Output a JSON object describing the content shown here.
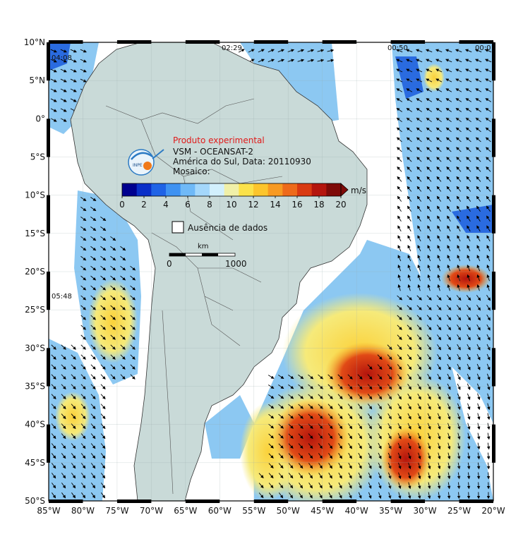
{
  "title": {
    "experimental": "Produto experimental",
    "sensor": "VSM - OCEANSAT-2",
    "region_date": "América do Sul, Data: 20110930",
    "mosaic": "Mosaico:"
  },
  "logo": {
    "text": "INPE"
  },
  "colorbar": {
    "unit": "m/s",
    "min": 0,
    "max": 20,
    "ticks": [
      "0",
      "2",
      "4",
      "6",
      "8",
      "10",
      "12",
      "14",
      "16",
      "18",
      "20"
    ],
    "colors": [
      "#00008f",
      "#0a2fc8",
      "#1f63e6",
      "#3e92f2",
      "#6fb9f7",
      "#a4d7fb",
      "#d2f0fd",
      "#f0f0a8",
      "#fbe24a",
      "#fcc52c",
      "#f79a22",
      "#ee6a1a",
      "#d93a12",
      "#b4150d",
      "#7e0a08"
    ]
  },
  "legend": {
    "missing_data": "Ausência de dados"
  },
  "scalebar": {
    "unit": "km",
    "start": "0",
    "end": "1000"
  },
  "time_labels": [
    "04:08",
    "02:29",
    "00:50",
    "00:0",
    "05:48"
  ],
  "axes": {
    "lat_labels": [
      "10°N",
      "5°N",
      "0°",
      "5°S",
      "10°S",
      "15°S",
      "20°S",
      "25°S",
      "30°S",
      "35°S",
      "40°S",
      "45°S",
      "50°S"
    ],
    "lon_labels": [
      "85°W",
      "80°W",
      "75°W",
      "70°W",
      "65°W",
      "60°W",
      "55°W",
      "50°W",
      "45°W",
      "40°W",
      "35°W",
      "30°W",
      "25°W",
      "20°W"
    ],
    "lat_values": [
      10,
      5,
      0,
      -5,
      -10,
      -15,
      -20,
      -25,
      -30,
      -35,
      -40,
      -45,
      -50
    ],
    "lon_values": [
      -85,
      -80,
      -75,
      -70,
      -65,
      -60,
      -55,
      -50,
      -45,
      -40,
      -35,
      -30,
      -25,
      -20
    ]
  }
}
